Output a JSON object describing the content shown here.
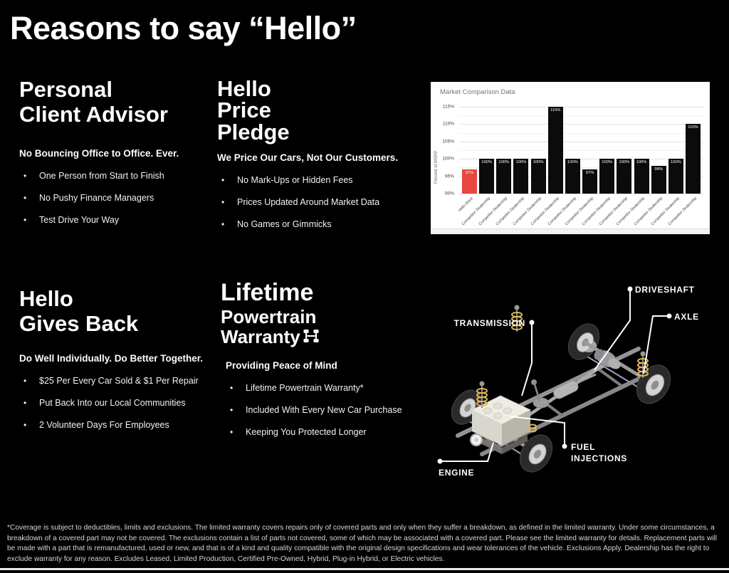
{
  "page": {
    "title": "Reasons to say “Hello”",
    "background": "#000000"
  },
  "sections": [
    {
      "name": "personal-client-advisor",
      "heading_lines": [
        "Personal",
        "Client Advisor"
      ],
      "subheading": "No Bouncing Office to Office. Ever.",
      "bullets": [
        "One Person from Start to Finish",
        "No Pushy Finance Managers",
        "Test Drive Your Way"
      ]
    },
    {
      "name": "hello-price-pledge",
      "heading_lines": [
        "Hello",
        "Price",
        "Pledge"
      ],
      "subheading": "We Price Our Cars, Not Our Customers.",
      "bullets": [
        "No Mark-Ups or Hidden Fees",
        "Prices Updated Around Market Data",
        "No Games or Gimmicks"
      ]
    },
    {
      "name": "hello-gives-back",
      "heading_lines": [
        "Hello",
        "Gives Back"
      ],
      "subheading": "Do Well Individually. Do Better Together.",
      "bullets": [
        "$25 Per Every Car Sold & $1 Per Repair",
        "Put Back Into our Local Communities",
        "2 Volunteer Days For Employees"
      ]
    },
    {
      "name": "lifetime-powertrain-warranty",
      "heading_lines": [
        "Lifetime",
        "Powertrain",
        "Warranty"
      ],
      "icon": "powertrain-icon",
      "subheading": "Providing Peace of Mind",
      "bullets": [
        "Lifetime Powertrain Warranty*",
        "Included With Every New Car Purchase",
        "Keeping You Protected Longer"
      ]
    }
  ],
  "chart_data": {
    "type": "bar",
    "title": "Market Comparison Data",
    "xlabel": "",
    "ylabel": "Percent of MSRP",
    "ylim": [
      90,
      116
    ],
    "yticks": [
      "115%",
      "110%",
      "105%",
      "100%",
      "95%",
      "90%"
    ],
    "grid": true,
    "legend_position": "none",
    "categories": [
      "Hello Store",
      "Competitor Dealership",
      "Competitor Dealership",
      "Competitor Dealership",
      "Competitor Dealership",
      "Competitor Dealership",
      "Competitor Dealership",
      "Competitor Dealership",
      "Competitor Dealership",
      "Competitor Dealership",
      "Competitor Dealership",
      "Competitor Dealership",
      "Competitor Dealership",
      "Competitor Dealership"
    ],
    "values": [
      97,
      100,
      100,
      100,
      100,
      115,
      100,
      97,
      100,
      100,
      100,
      98,
      100,
      110
    ],
    "value_labels": [
      "97%",
      "100%",
      "100%",
      "100%",
      "100%",
      "115%",
      "100%",
      "97%",
      "100%",
      "100%",
      "100%",
      "98%",
      "100%",
      "110%"
    ],
    "bar_color": "#0b0b0b",
    "highlight_color": "#e8473f",
    "highlight_index": 0
  },
  "diagram": {
    "labels": {
      "driveshaft": "DRIVESHAFT",
      "axle": "AXLE",
      "transmission": "TRANSMISSION",
      "fuel_injections": [
        "FUEL",
        "INJECTIONS"
      ],
      "engine": "ENGINE"
    },
    "colors": {
      "spring": "#dfb85a",
      "tire": "#2a2a2a",
      "rim": "#d4d4d4",
      "frame": "#919191"
    }
  },
  "footer": {
    "disclaimer": "*Coverage is subject to deductibles, limits and exclusions. The limited warranty covers repairs only of covered parts and only when they suffer a breakdown, as defined in the limited warranty. Under some circumstances, a breakdown of a covered part may not be covered. The exclusions contain a list of parts not covered, some of which may be associated with a covered part. Please see the limited warranty for details. Replacement parts will be made with a part that is remanufactured, used or new, and that is of a kind and quality compatible with the original design specifications and wear tolerances of the vehicle. Exclusions Apply. Dealership has the right to exclude warranty for any reason. Excludes Leased, Limited Production, Certified Pre-Owned, Hybrid, Plug-in Hybrid, or Electric vehicles."
  }
}
